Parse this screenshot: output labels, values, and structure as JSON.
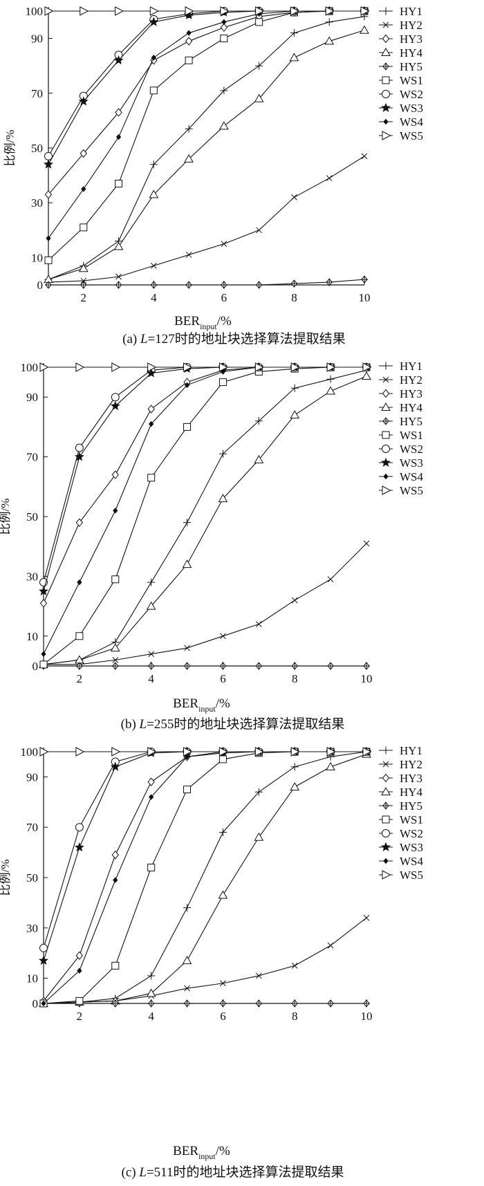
{
  "panels": [
    {
      "caption_prefix": "(a) ",
      "caption_italic": "L",
      "caption_rest": "=127时的地址块选择算法提取结果",
      "xlabel_main": "BER",
      "xlabel_sub": "input",
      "xlabel_unit": "/%",
      "ylabel": "比例/%"
    },
    {
      "caption_prefix": "(b) ",
      "caption_italic": "L",
      "caption_rest": "=255时的地址块选择算法提取结果",
      "xlabel_main": "BER",
      "xlabel_sub": "input",
      "xlabel_unit": "/%",
      "ylabel": "比例/%"
    },
    {
      "caption_prefix": "(c) ",
      "caption_italic": "L",
      "caption_rest": "=511时的地址块选择算法提取结果",
      "xlabel_main": "BER",
      "xlabel_sub": "input",
      "xlabel_unit": "/%",
      "ylabel": "比例/%"
    }
  ],
  "chart_data": [
    {
      "type": "line",
      "x": [
        1,
        2,
        3,
        4,
        5,
        6,
        7,
        8,
        9,
        10
      ],
      "xlim": [
        1,
        10
      ],
      "ylim": [
        0,
        100
      ],
      "xticks": [
        2,
        4,
        6,
        8,
        10
      ],
      "yticks": [
        0,
        10,
        30,
        50,
        70,
        90,
        100
      ],
      "ylabel": "比例/%",
      "xlabel": "BER input /%",
      "legend_position": "right",
      "series": [
        {
          "name": "HY1",
          "marker": "plus",
          "values": [
            2,
            7,
            16,
            44,
            57,
            71,
            80,
            92,
            96,
            98
          ]
        },
        {
          "name": "HY2",
          "marker": "x",
          "values": [
            1,
            1.5,
            3,
            7,
            11,
            15,
            20,
            32,
            39,
            47
          ]
        },
        {
          "name": "HY3",
          "marker": "diamond",
          "values": [
            33,
            48,
            63,
            82,
            89,
            94,
            98,
            99.5,
            100,
            100
          ]
        },
        {
          "name": "HY4",
          "marker": "triangle-up",
          "values": [
            2,
            6,
            14,
            33,
            46,
            58,
            68,
            83,
            89,
            93
          ]
        },
        {
          "name": "HY5",
          "marker": "star-diamond",
          "values": [
            0,
            0,
            0,
            0,
            0,
            0,
            0,
            0.5,
            1,
            2
          ]
        },
        {
          "name": "WS1",
          "marker": "square",
          "values": [
            9,
            21,
            37,
            71,
            82,
            90,
            96,
            99.5,
            100,
            100
          ]
        },
        {
          "name": "WS2",
          "marker": "circle",
          "values": [
            47,
            69,
            84,
            97,
            99,
            100,
            100,
            100,
            100,
            100
          ]
        },
        {
          "name": "WS3",
          "marker": "star",
          "values": [
            44,
            67,
            82,
            96,
            98.5,
            99.5,
            100,
            100,
            100,
            100
          ]
        },
        {
          "name": "WS4",
          "marker": "dot",
          "values": [
            17,
            35,
            54,
            83,
            92,
            96,
            99,
            100,
            100,
            100
          ]
        },
        {
          "name": "WS5",
          "marker": "triangle-right",
          "values": [
            100,
            100,
            100,
            100,
            100,
            100,
            100,
            100,
            100,
            100
          ]
        }
      ]
    },
    {
      "type": "line",
      "x": [
        1,
        2,
        3,
        4,
        5,
        6,
        7,
        8,
        9,
        10
      ],
      "xlim": [
        1,
        10
      ],
      "ylim": [
        0,
        100
      ],
      "xticks": [
        2,
        4,
        6,
        8,
        10
      ],
      "yticks": [
        0,
        10,
        30,
        50,
        70,
        90,
        100
      ],
      "ylabel": "比例/%",
      "xlabel": "BER input /%",
      "legend_position": "right",
      "series": [
        {
          "name": "HY1",
          "marker": "plus",
          "values": [
            0.5,
            2,
            8,
            28,
            48,
            71,
            82,
            93,
            96,
            99
          ]
        },
        {
          "name": "HY2",
          "marker": "x",
          "values": [
            0.5,
            0.5,
            2,
            4,
            6,
            10,
            14,
            22,
            29,
            41
          ]
        },
        {
          "name": "HY3",
          "marker": "diamond",
          "values": [
            21,
            48,
            64,
            86,
            95,
            99,
            100,
            100,
            100,
            100
          ]
        },
        {
          "name": "HY4",
          "marker": "triangle-up",
          "values": [
            0.5,
            2,
            6,
            20,
            34,
            56,
            69,
            84,
            92,
            97
          ]
        },
        {
          "name": "HY5",
          "marker": "star-diamond",
          "values": [
            0,
            0,
            0,
            0,
            0,
            0,
            0,
            0,
            0,
            0
          ]
        },
        {
          "name": "WS1",
          "marker": "square",
          "values": [
            0.5,
            10,
            29,
            63,
            80,
            95,
            98.5,
            99.5,
            100,
            100
          ]
        },
        {
          "name": "WS2",
          "marker": "circle",
          "values": [
            28,
            73,
            90,
            99,
            100,
            100,
            100,
            100,
            100,
            100
          ]
        },
        {
          "name": "WS3",
          "marker": "star",
          "values": [
            25,
            70,
            87,
            98,
            99.5,
            100,
            100,
            100,
            100,
            100
          ]
        },
        {
          "name": "WS4",
          "marker": "dot",
          "values": [
            4,
            28,
            52,
            81,
            94,
            98.5,
            100,
            100,
            100,
            100
          ]
        },
        {
          "name": "WS5",
          "marker": "triangle-right",
          "values": [
            100,
            100,
            100,
            100,
            100,
            100,
            100,
            100,
            100,
            100
          ]
        }
      ]
    },
    {
      "type": "line",
      "x": [
        1,
        2,
        3,
        4,
        5,
        6,
        7,
        8,
        9,
        10
      ],
      "xlim": [
        1,
        10
      ],
      "ylim": [
        0,
        100
      ],
      "xticks": [
        2,
        4,
        6,
        8,
        10
      ],
      "yticks": [
        0,
        10,
        30,
        50,
        70,
        90,
        100
      ],
      "ylabel": "比例/%",
      "xlabel": "BER input /%",
      "legend_position": "right",
      "series": [
        {
          "name": "HY1",
          "marker": "plus",
          "values": [
            0,
            0.5,
            2,
            11,
            38,
            68,
            84,
            94,
            98,
            100
          ]
        },
        {
          "name": "HY2",
          "marker": "x",
          "values": [
            0,
            0.5,
            1,
            3,
            6,
            8,
            11,
            15,
            23,
            34
          ]
        },
        {
          "name": "HY3",
          "marker": "diamond",
          "values": [
            1,
            19,
            59,
            88,
            98,
            100,
            100,
            100,
            100,
            100
          ]
        },
        {
          "name": "HY4",
          "marker": "triangle-up",
          "values": [
            0,
            0.5,
            1,
            4,
            17,
            43,
            66,
            86,
            94,
            99
          ]
        },
        {
          "name": "HY5",
          "marker": "star-diamond",
          "values": [
            0,
            0,
            0,
            0,
            0,
            0,
            0,
            0,
            0,
            0
          ]
        },
        {
          "name": "WS1",
          "marker": "square",
          "values": [
            0,
            1,
            15,
            54,
            85,
            97,
            99.5,
            100,
            100,
            100
          ]
        },
        {
          "name": "WS2",
          "marker": "circle",
          "values": [
            22,
            70,
            96,
            100,
            100,
            100,
            100,
            100,
            100,
            100
          ]
        },
        {
          "name": "WS3",
          "marker": "star",
          "values": [
            17,
            62,
            94,
            99.5,
            100,
            100,
            100,
            100,
            100,
            100
          ]
        },
        {
          "name": "WS4",
          "marker": "dot",
          "values": [
            0,
            13,
            49,
            82,
            98,
            99.5,
            100,
            100,
            100,
            100
          ]
        },
        {
          "name": "WS5",
          "marker": "triangle-right",
          "values": [
            100,
            100,
            100,
            100,
            100,
            100,
            100,
            100,
            100,
            100
          ]
        }
      ]
    }
  ]
}
